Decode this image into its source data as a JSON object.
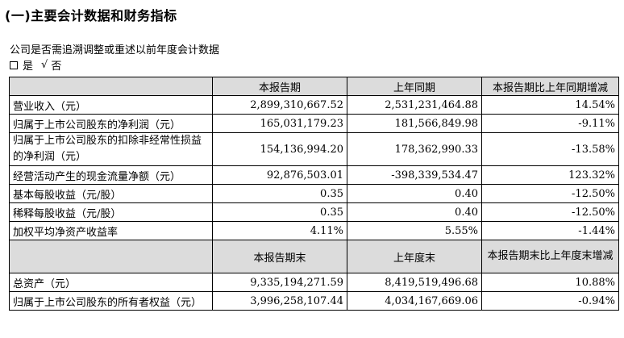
{
  "title": "(一)主要会计数据和财务指标",
  "question": "公司是否需追溯调整或重述以前年度会计数据",
  "options": {
    "yes": "是",
    "check": "√",
    "no": "否"
  },
  "header1": [
    "",
    "本报告期",
    "上年同期",
    "本报告期比上年同期增减"
  ],
  "rows1": [
    [
      "营业收入（元）",
      "2,899,310,667.52",
      "2,531,231,464.88",
      "14.54%"
    ],
    [
      "归属于上市公司股东的净利润（元）",
      "165,031,179.23",
      "181,566,849.98",
      "-9.11%"
    ],
    [
      "归属于上市公司股东的扣除非经常性损益的净利润（元）",
      "154,136,994.20",
      "178,362,990.33",
      "-13.58%"
    ],
    [
      "经营活动产生的现金流量净额（元）",
      "92,876,503.01",
      "-398,339,534.47",
      "123.32%"
    ],
    [
      "基本每股收益（元/股）",
      "0.35",
      "0.40",
      "-12.50%"
    ],
    [
      "稀释每股收益（元/股）",
      "0.35",
      "0.40",
      "-12.50%"
    ],
    [
      "加权平均净资产收益率",
      "4.11%",
      "5.55%",
      "-1.44%"
    ]
  ],
  "header2": [
    "",
    "本报告期末",
    "上年度末",
    "本报告期末比上年度末增减"
  ],
  "rows2": [
    [
      "总资产（元）",
      "9,335,194,271.59",
      "8,419,519,496.68",
      "10.88%"
    ],
    [
      "归属于上市公司股东的所有者权益（元）",
      "3,996,258,107.44",
      "4,034,167,669.06",
      "-0.94%"
    ]
  ]
}
